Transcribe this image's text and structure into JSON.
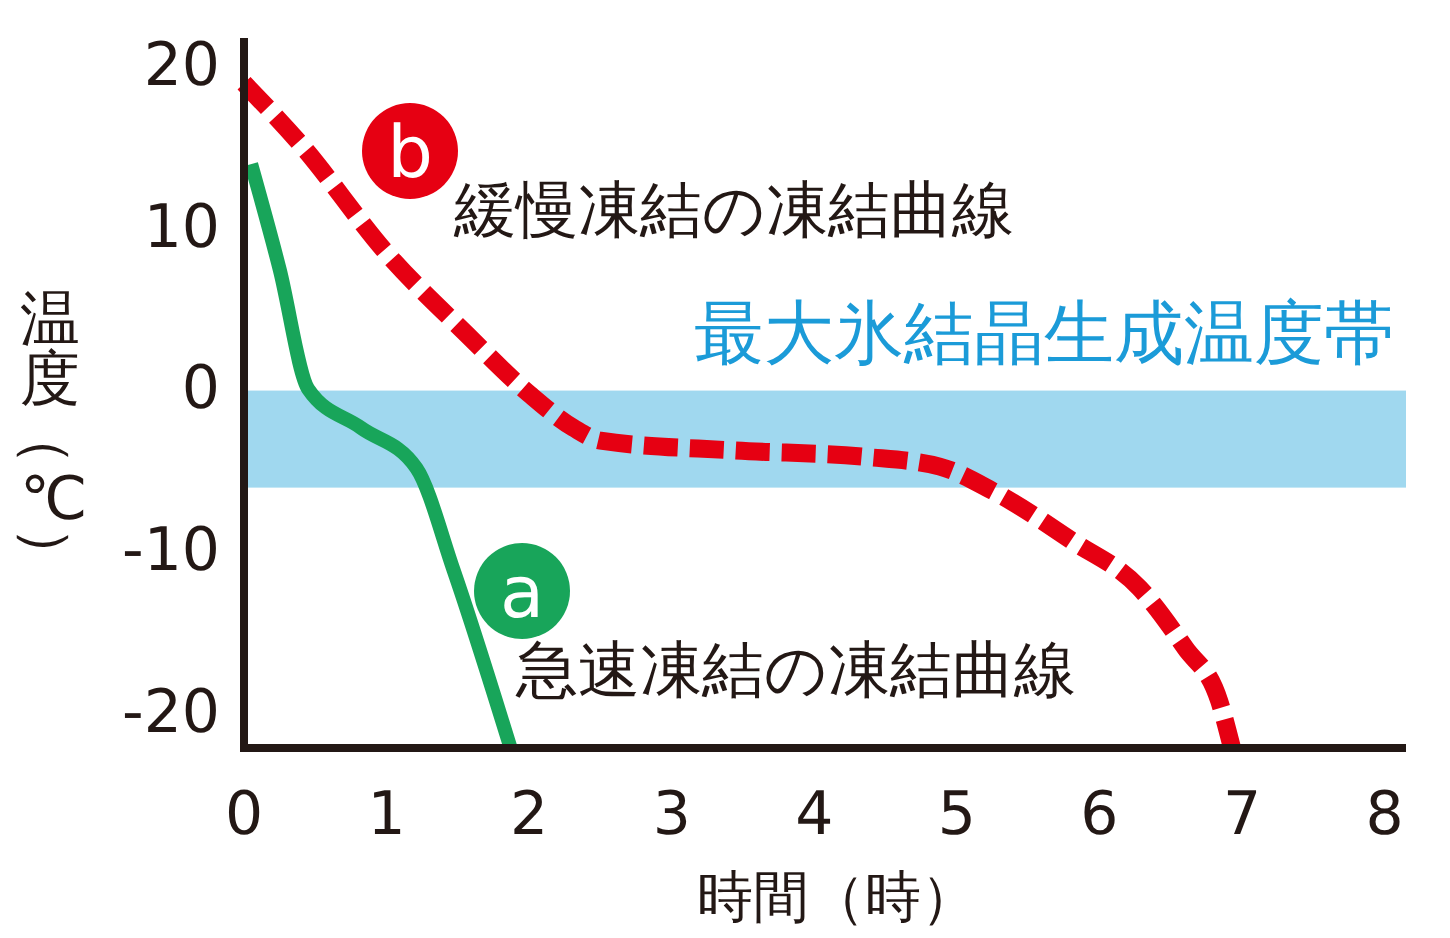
{
  "chart_data": {
    "type": "line",
    "xlabel": "時間（時）",
    "ylabel": "温度（℃）",
    "xlim": [
      0,
      8.15
    ],
    "ylim": [
      -22.3,
      21.6
    ],
    "xticks": [
      0,
      1,
      2,
      3,
      4,
      5,
      6,
      7,
      8
    ],
    "yticks": [
      -20,
      -10,
      0,
      10,
      20
    ],
    "legend": "left",
    "series": [
      {
        "name": "急速凍結の凍結曲線",
        "color": "#18a55a",
        "line_style": "solid",
        "x": [
          0.05,
          0.25,
          0.45,
          0.82,
          1.21,
          1.47,
          1.87
        ],
        "values": [
          13.8,
          7.3,
          -0.1,
          -2.5,
          -5,
          -11.3,
          -22.3
        ]
      },
      {
        "name": "緩慢凍結の凍結曲線",
        "color": "#e60012",
        "line_style": "dashed",
        "x": [
          0,
          0.4,
          1.01,
          1.56,
          2.0,
          2.31,
          2.5,
          3.43,
          4.36,
          4.88,
          5.25,
          5.81,
          6.28,
          6.6,
          6.84,
          6.93
        ],
        "values": [
          18.8,
          15,
          8.2,
          3.3,
          -0.4,
          -2.5,
          -3.3,
          -3.9,
          -4.3,
          -4.9,
          -6.4,
          -9.5,
          -12.4,
          -16.1,
          -19.4,
          -22.3
        ]
      }
    ],
    "bands": [
      {
        "axis": "y",
        "from": -6.2,
        "to": -0.2,
        "label": "最大氷結晶生成温度帯",
        "color": "#a0d8ef"
      }
    ],
    "annotations": [
      "a",
      "b"
    ]
  }
}
